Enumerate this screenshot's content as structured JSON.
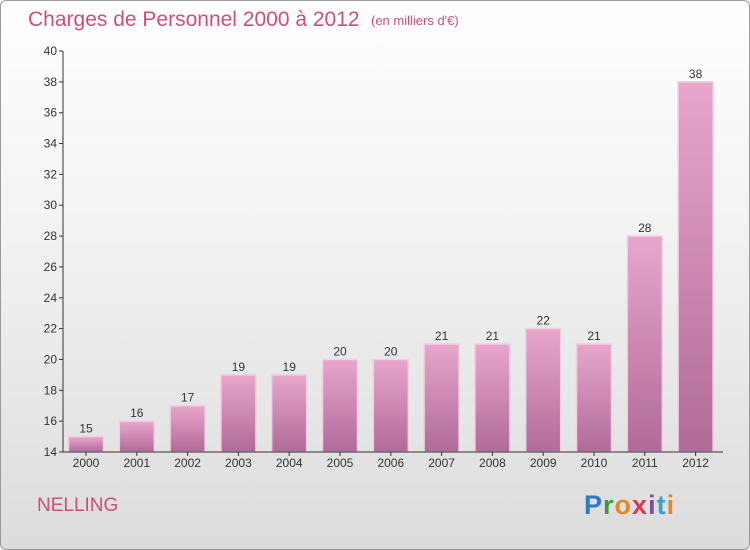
{
  "header": {
    "title": "Charges de Personnel 2000 à 2012",
    "subtitle": "(en milliers d'€)"
  },
  "footer": {
    "commune": "NELLING",
    "brand": "Proxiti"
  },
  "colors": {
    "title": "#cc4f7b",
    "bar_light": "#e8a6cc",
    "bar_dark": "#b06b99",
    "axis": "#333333"
  },
  "chart_data": {
    "type": "bar",
    "title": "Charges de Personnel 2000 à 2012",
    "subtitle": "(en milliers d'€)",
    "xlabel": "",
    "ylabel": "",
    "categories": [
      "2000",
      "2001",
      "2002",
      "2003",
      "2004",
      "2005",
      "2006",
      "2007",
      "2008",
      "2009",
      "2010",
      "2011",
      "2012"
    ],
    "values": [
      15,
      16,
      17,
      19,
      19,
      20,
      20,
      21,
      21,
      22,
      21,
      28,
      38
    ],
    "ylim": [
      14,
      40
    ],
    "yticks": [
      14,
      16,
      18,
      20,
      22,
      24,
      26,
      28,
      30,
      32,
      34,
      36,
      38,
      40
    ],
    "grid": false,
    "legend": "none"
  }
}
